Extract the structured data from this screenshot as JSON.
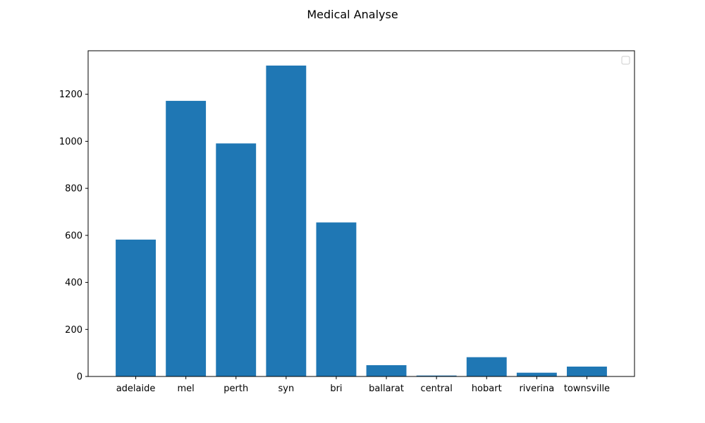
{
  "chart_data": {
    "type": "bar",
    "title": "Medical Analyse",
    "xlabel": "",
    "ylabel": "",
    "categories": [
      "adelaide",
      "mel",
      "perth",
      "syn",
      "bri",
      "ballarat",
      "central",
      "hobart",
      "riverina",
      "townsville"
    ],
    "values": [
      582,
      1172,
      991,
      1322,
      655,
      48,
      4,
      82,
      16,
      42
    ],
    "ylim": [
      0,
      1385
    ],
    "yticks": [
      0,
      200,
      400,
      600,
      800,
      1000,
      1200
    ],
    "bar_color": "#1f77b4",
    "grid": false,
    "legend": {
      "placement": "top-right",
      "entries": []
    }
  }
}
